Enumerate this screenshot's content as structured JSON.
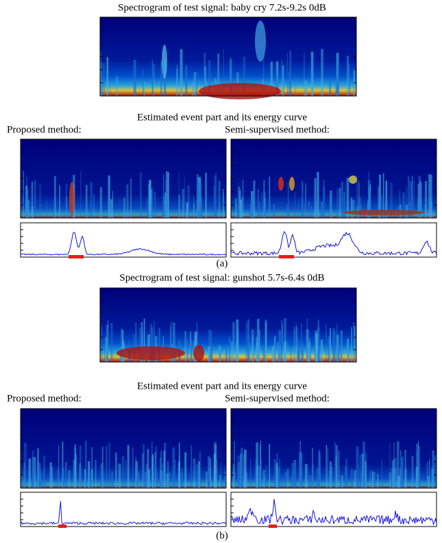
{
  "panels": [
    {
      "spectrogram_title": "Spectrogram of test signal: baby cry 7.2s-9.2s 0dB",
      "estimate_title": "Estimated event part and its energy curve",
      "proposed_label": "Proposed method:",
      "semi_label": "Semi-supervised method:",
      "caption": "(a)"
    },
    {
      "spectrogram_title": "Spectrogram of test signal: gunshot 5.7s-6.4s 0dB",
      "estimate_title": "Estimated event part and its energy curve",
      "proposed_label": "Proposed method:",
      "semi_label": "Semi-supervised method:",
      "caption": "(b)"
    }
  ]
}
